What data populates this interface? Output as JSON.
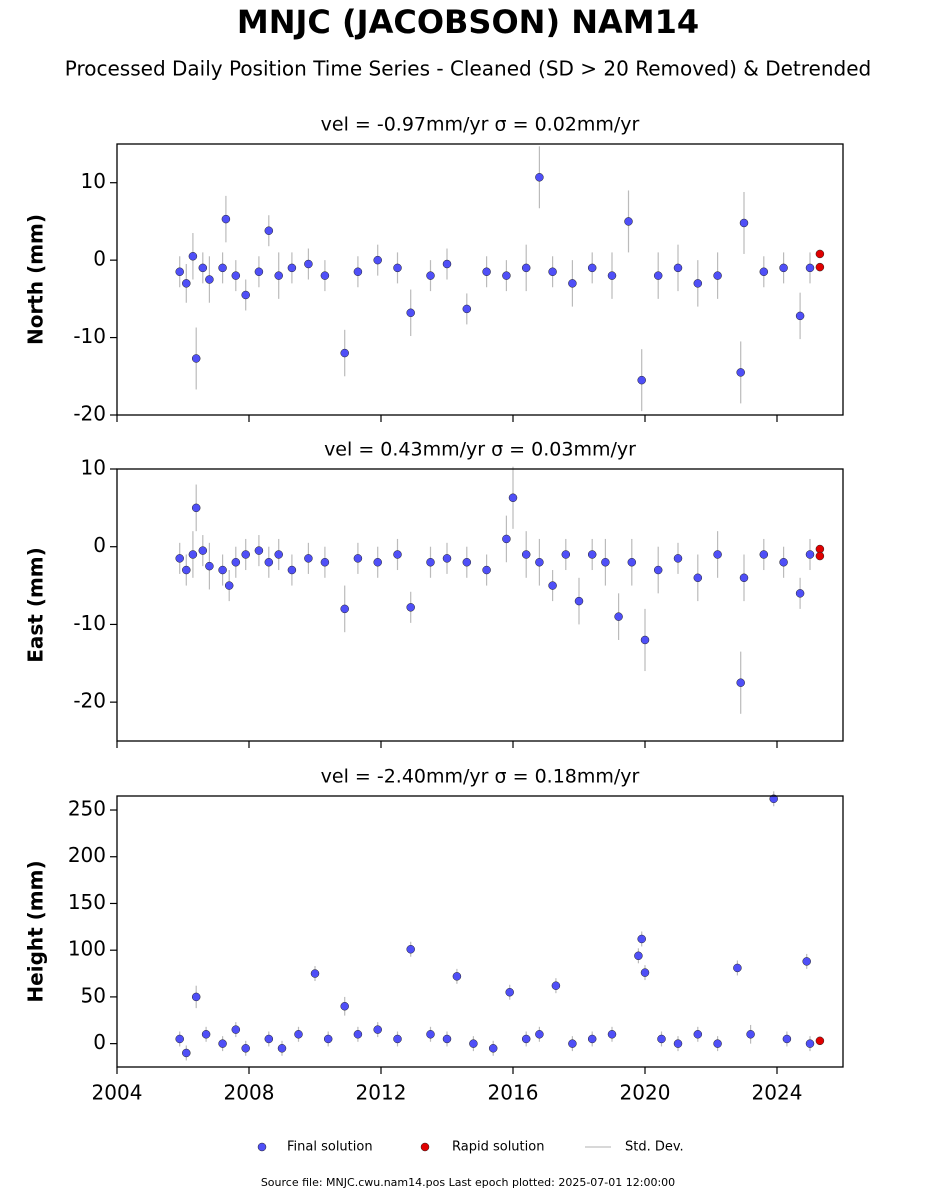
{
  "header": {
    "title": "MNJC (JACOBSON) NAM14",
    "subtitle": "Processed Daily Position Time Series - Cleaned (SD > 20 Removed) & Detrended"
  },
  "legend": [
    {
      "name": "Final solution",
      "color": "#4f4ff7"
    },
    {
      "name": "Rapid solution",
      "color": "#e00000"
    },
    {
      "name": "Std. Dev.",
      "color": "#cccccc"
    }
  ],
  "footer": "Source file: MNJC.cwu.nam14.pos  Last epoch plotted: 2025-07-01 12:00:00",
  "chart_data": [
    {
      "type": "scatter",
      "title": "vel = -0.97mm/yr   σ = 0.02mm/yr",
      "y_label": "North (mm)",
      "xlim": [
        2004,
        2026
      ],
      "xticks": [
        2004,
        2008,
        2012,
        2016,
        2020,
        2024
      ],
      "xtick_labels": false,
      "ylim": [
        -20,
        15
      ],
      "yticks": [
        -20,
        -10,
        0,
        10
      ],
      "series": [
        {
          "color": "#4f4ff7",
          "x": [
            2005.9,
            2006.1,
            2006.3,
            2006.4,
            2006.6,
            2006.8,
            2007.2,
            2007.3,
            2007.6,
            2007.9,
            2008.3,
            2008.6,
            2008.9,
            2009.3,
            2009.8,
            2010.3,
            2010.9,
            2011.3,
            2011.9,
            2012.5,
            2012.9,
            2013.5,
            2014.0,
            2014.6,
            2015.2,
            2015.8,
            2016.4,
            2016.8,
            2017.2,
            2017.8,
            2018.4,
            2019.0,
            2019.5,
            2019.9,
            2020.4,
            2021.0,
            2021.6,
            2022.2,
            2022.9,
            2023.0,
            2023.6,
            2024.2,
            2024.7,
            2025.0
          ],
          "values": [
            -1.5,
            -3,
            0.5,
            -12.7,
            -1,
            -2.5,
            -1,
            5.3,
            -2,
            -4.5,
            -1.5,
            3.8,
            -2,
            -1,
            -0.5,
            -2,
            -12,
            -1.5,
            0,
            -1,
            -6.8,
            -2,
            -0.5,
            -6.3,
            -1.5,
            -2,
            -1,
            10.7,
            -1.5,
            -3,
            -1,
            -2,
            5.0,
            -15.5,
            -2,
            -1,
            -3,
            -2,
            -14.5,
            4.8,
            -1.5,
            -1,
            -7.2,
            -1
          ],
          "errors": [
            2,
            2.5,
            3,
            4,
            2,
            3,
            2,
            3,
            2,
            2,
            2,
            2,
            3,
            2,
            2,
            2,
            3,
            2,
            2,
            2,
            3,
            2,
            2,
            2,
            2,
            2,
            3,
            4,
            2,
            3,
            2,
            3,
            4,
            4,
            3,
            3,
            3,
            3,
            4,
            4,
            2,
            2,
            3,
            2
          ]
        },
        {
          "color": "#e00000",
          "x": [
            2025.3,
            2025.3
          ],
          "values": [
            0.8,
            -0.9
          ]
        }
      ]
    },
    {
      "type": "scatter",
      "title": "vel = 0.43mm/yr   σ = 0.03mm/yr",
      "y_label": "East (mm)",
      "xlim": [
        2004,
        2026
      ],
      "xticks": [
        2004,
        2008,
        2012,
        2016,
        2020,
        2024
      ],
      "xtick_labels": false,
      "ylim": [
        -25,
        10
      ],
      "yticks": [
        -20,
        -10,
        0,
        10
      ],
      "series": [
        {
          "color": "#4f4ff7",
          "x": [
            2005.9,
            2006.1,
            2006.3,
            2006.4,
            2006.6,
            2006.8,
            2007.2,
            2007.4,
            2007.6,
            2007.9,
            2008.3,
            2008.6,
            2008.9,
            2009.3,
            2009.8,
            2010.3,
            2010.9,
            2011.3,
            2011.9,
            2012.5,
            2012.9,
            2013.5,
            2014.0,
            2014.6,
            2015.2,
            2015.8,
            2016.0,
            2016.4,
            2016.8,
            2017.2,
            2017.6,
            2018.0,
            2018.4,
            2018.8,
            2019.2,
            2019.6,
            2020.0,
            2020.4,
            2021.0,
            2021.6,
            2022.2,
            2022.9,
            2023.0,
            2023.6,
            2024.2,
            2024.7,
            2025.0
          ],
          "values": [
            -1.5,
            -3,
            -1,
            5,
            -0.5,
            -2.5,
            -3,
            -5,
            -2,
            -1,
            -0.5,
            -2,
            -1,
            -3,
            -1.5,
            -2,
            -8,
            -1.5,
            -2,
            -1,
            -7.8,
            -2,
            -1.5,
            -2,
            -3,
            1,
            6.3,
            -1,
            -2,
            -5,
            -1,
            -7,
            -1,
            -2,
            -9,
            -2,
            -12,
            -3,
            -1.5,
            -4,
            -1,
            -17.5,
            -4,
            -1,
            -2,
            -6,
            -1
          ],
          "errors": [
            2,
            2,
            3,
            3,
            2,
            3,
            2,
            2,
            2,
            2,
            2,
            2,
            2,
            2,
            2,
            2,
            3,
            2,
            2,
            2,
            2,
            2,
            2,
            2,
            2,
            3,
            4,
            3,
            3,
            2,
            2,
            3,
            2,
            3,
            3,
            3,
            4,
            3,
            2,
            3,
            3,
            4,
            3,
            2,
            2,
            2,
            2
          ]
        },
        {
          "color": "#e00000",
          "x": [
            2025.3,
            2025.3
          ],
          "values": [
            -0.3,
            -1.2
          ]
        }
      ]
    },
    {
      "type": "scatter",
      "title": "vel = -2.40mm/yr   σ = 0.18mm/yr",
      "y_label": "Height (mm)",
      "xlim": [
        2004,
        2026
      ],
      "xticks": [
        2004,
        2008,
        2012,
        2016,
        2020,
        2024
      ],
      "xtick_labels": true,
      "ylim": [
        -25,
        265
      ],
      "yticks": [
        0,
        50,
        100,
        150,
        200,
        250
      ],
      "series": [
        {
          "color": "#4f4ff7",
          "x": [
            2005.9,
            2006.1,
            2006.4,
            2006.7,
            2007.2,
            2007.6,
            2007.9,
            2008.6,
            2009.0,
            2009.5,
            2010.0,
            2010.4,
            2010.9,
            2011.3,
            2011.9,
            2012.5,
            2012.9,
            2013.5,
            2014.0,
            2014.3,
            2014.8,
            2015.4,
            2015.9,
            2016.4,
            2016.8,
            2017.3,
            2017.8,
            2018.4,
            2019.0,
            2019.8,
            2019.9,
            2020.0,
            2020.5,
            2021.0,
            2021.6,
            2022.2,
            2022.8,
            2023.2,
            2023.9,
            2024.3,
            2024.9,
            2025.0
          ],
          "values": [
            5,
            -10,
            50,
            10,
            0,
            15,
            -5,
            5,
            -5,
            10,
            75,
            5,
            40,
            10,
            15,
            5,
            101,
            10,
            5,
            72,
            0,
            -5,
            55,
            5,
            10,
            62,
            0,
            5,
            10,
            94,
            112,
            76,
            5,
            0,
            10,
            0,
            81,
            10,
            262,
            5,
            88,
            0
          ],
          "errors": [
            8,
            8,
            12,
            8,
            8,
            8,
            8,
            8,
            8,
            8,
            8,
            8,
            10,
            8,
            8,
            8,
            8,
            8,
            8,
            8,
            8,
            8,
            8,
            8,
            8,
            8,
            8,
            8,
            8,
            8,
            8,
            8,
            8,
            8,
            8,
            8,
            8,
            10,
            8,
            8,
            8,
            8
          ]
        },
        {
          "color": "#e00000",
          "x": [
            2025.3
          ],
          "values": [
            3
          ]
        }
      ]
    }
  ]
}
